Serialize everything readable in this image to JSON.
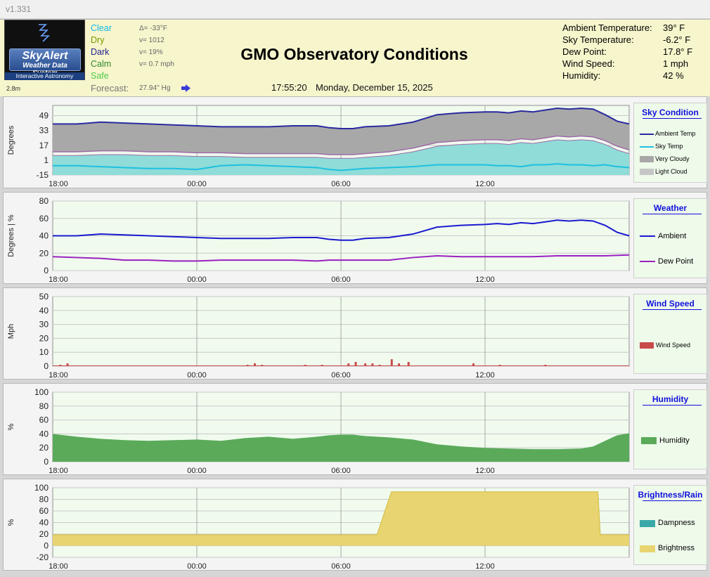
{
  "window": {
    "version": "v1.331"
  },
  "logo": {
    "title": "SkyAlert",
    "subtitle": "Weather Data System",
    "tagline": "Interactive Astronomy"
  },
  "header": {
    "stale": "2.8m",
    "title": "GMO Observatory Conditions",
    "time": "17:55:20",
    "date": "Monday, December 15, 2025",
    "status": [
      {
        "label": "Clear",
        "value": "Δ= -33°F",
        "color": "#12b8e8"
      },
      {
        "label": "Dry",
        "value": "v= 1012",
        "color": "#779900"
      },
      {
        "label": "Dark",
        "value": "v= 19%",
        "color": "#1f1f8f"
      },
      {
        "label": "Calm",
        "value": "v= 0.7 mph",
        "color": "#2e8b2e"
      },
      {
        "label": "Safe",
        "value": "",
        "color": "#4ccc4c"
      }
    ],
    "forecast": {
      "label": "Forecast:",
      "value": "27.94'' Hg"
    },
    "readings": [
      {
        "label": "Ambient Temperature:",
        "value": "39° F"
      },
      {
        "label": "Sky Temperature:",
        "value": "-6.2° F"
      },
      {
        "label": "Dew Point:",
        "value": "17.8° F"
      },
      {
        "label": "Wind Speed:",
        "value": "1 mph"
      },
      {
        "label": "Humidity:",
        "value": "42 %"
      }
    ]
  },
  "charts": [
    {
      "id": "sky",
      "legend_title": "Sky Condition",
      "legend": [
        "Ambient Temp",
        "Sky Temp",
        "Very Cloudy",
        "Light Cloud"
      ]
    },
    {
      "id": "weather",
      "legend_title": "Weather",
      "legend": [
        "Ambient",
        "Dew Point"
      ]
    },
    {
      "id": "wind",
      "legend_title": "Wind Speed",
      "legend": [
        "Wind Speed"
      ]
    },
    {
      "id": "humidity",
      "legend_title": "Humidity",
      "legend": [
        "Humidity"
      ]
    },
    {
      "id": "bright",
      "legend_title": "Brightness/Rain",
      "legend": [
        "Dampness",
        "Brightness"
      ]
    }
  ],
  "chart_data": [
    {
      "type": "area",
      "ylabel": "Degrees",
      "yticks": [
        49,
        33,
        17,
        1,
        -15
      ],
      "ylim": [
        -15,
        60
      ],
      "xticks": [
        "18:00",
        "00:00",
        "06:00",
        "12:00"
      ],
      "xlim": [
        0,
        24
      ],
      "series": [
        {
          "name": "Ambient Temp",
          "color": "#2a2aa0",
          "x": [
            0,
            1,
            2,
            3,
            4,
            5,
            6,
            7,
            8,
            9,
            10,
            11,
            11.5,
            12,
            12.5,
            13,
            14,
            15,
            16,
            17,
            18,
            18.5,
            19,
            19.5,
            20,
            20.5,
            21,
            21.5,
            22,
            22.5,
            23,
            23.5,
            24
          ],
          "y": [
            40,
            40,
            42,
            41,
            40,
            39,
            38,
            37,
            37,
            37,
            38,
            38,
            36,
            35,
            35,
            37,
            38,
            42,
            50,
            52,
            53,
            53,
            52,
            54,
            53,
            55,
            57,
            56,
            57,
            56,
            50,
            43,
            40
          ]
        },
        {
          "name": "Sky Temp",
          "color": "#1ec0e0",
          "x": [
            0,
            1,
            2,
            3,
            4,
            5,
            6,
            7,
            8,
            9,
            10,
            11,
            11.5,
            12,
            12.5,
            13,
            14,
            15,
            16,
            17,
            18,
            18.5,
            19,
            19.5,
            20,
            20.5,
            21,
            21.5,
            22,
            22.5,
            23,
            23.5,
            24
          ],
          "y": [
            -5,
            -5,
            -6,
            -7,
            -8,
            -8,
            -9,
            -5,
            -4,
            -5,
            -6,
            -7,
            -9,
            -10,
            -9,
            -8,
            -7,
            -6,
            -4,
            -4,
            -4,
            -5,
            -5,
            -6,
            -4,
            -4,
            -3,
            -4,
            -4,
            -5,
            -4,
            -6,
            -7
          ]
        },
        {
          "name": "Very Cloudy",
          "color": "#a8a8a8",
          "x": [
            0,
            1,
            2,
            3,
            4,
            5,
            6,
            7,
            8,
            9,
            10,
            11,
            11.5,
            12,
            12.5,
            13,
            14,
            15,
            16,
            17,
            18,
            18.5,
            19,
            19.5,
            20,
            20.5,
            21,
            21.5,
            22,
            22.5,
            23,
            23.5,
            24
          ],
          "y": [
            10,
            10,
            11,
            11,
            10,
            10,
            9,
            9,
            8,
            8,
            8,
            8,
            7,
            7,
            7,
            8,
            10,
            14,
            20,
            22,
            23,
            23,
            22,
            24,
            23,
            25,
            27,
            26,
            27,
            26,
            22,
            16,
            12
          ]
        },
        {
          "name": "Light Cloud",
          "color": "#c6c6c6",
          "x": [
            0,
            1,
            2,
            3,
            4,
            5,
            6,
            7,
            8,
            9,
            10,
            11,
            11.5,
            12,
            12.5,
            13,
            14,
            15,
            16,
            17,
            18,
            18.5,
            19,
            19.5,
            20,
            20.5,
            21,
            21.5,
            22,
            22.5,
            23,
            23.5,
            24
          ],
          "y": [
            6,
            6,
            7,
            7,
            6,
            6,
            5,
            5,
            4,
            4,
            4,
            4,
            3,
            3,
            3,
            4,
            6,
            10,
            16,
            18,
            19,
            19,
            18,
            20,
            19,
            21,
            23,
            22,
            23,
            22,
            18,
            12,
            8
          ]
        }
      ]
    },
    {
      "type": "line",
      "ylabel": "Degrees  |  %",
      "yticks": [
        80,
        60,
        40,
        20,
        0
      ],
      "ylim": [
        0,
        80
      ],
      "xticks": [
        "18:00",
        "00:00",
        "06:00",
        "12:00"
      ],
      "xlim": [
        0,
        24
      ],
      "series": [
        {
          "name": "Ambient",
          "color": "#1a1ad0",
          "x": [
            0,
            1,
            2,
            3,
            4,
            5,
            6,
            7,
            8,
            9,
            10,
            11,
            11.5,
            12,
            12.5,
            13,
            14,
            15,
            16,
            17,
            18,
            18.5,
            19,
            19.5,
            20,
            20.5,
            21,
            21.5,
            22,
            22.5,
            23,
            23.5,
            24
          ],
          "y": [
            40,
            40,
            42,
            41,
            40,
            39,
            38,
            37,
            37,
            37,
            38,
            38,
            36,
            35,
            35,
            37,
            38,
            42,
            50,
            52,
            53,
            54,
            53,
            55,
            54,
            56,
            58,
            57,
            58,
            57,
            52,
            44,
            40
          ]
        },
        {
          "name": "Dew Point",
          "color": "#9a20c0",
          "x": [
            0,
            1,
            2,
            3,
            4,
            5,
            6,
            7,
            8,
            9,
            10,
            11,
            11.5,
            12,
            12.5,
            13,
            14,
            15,
            16,
            17,
            18,
            19,
            20,
            21,
            22,
            23,
            24
          ],
          "y": [
            16,
            15,
            14,
            12,
            12,
            11,
            11,
            12,
            12,
            12,
            12,
            11,
            12,
            12,
            12,
            12,
            12,
            15,
            17,
            16,
            16,
            16,
            16,
            17,
            17,
            17,
            18
          ]
        }
      ]
    },
    {
      "type": "bar",
      "ylabel": "Mph",
      "yticks": [
        50,
        40,
        30,
        20,
        10,
        0
      ],
      "ylim": [
        0,
        50
      ],
      "xticks": [
        "18:00",
        "00:00",
        "06:00",
        "12:00"
      ],
      "xlim": [
        0,
        24
      ],
      "series": [
        {
          "name": "Wind Speed",
          "color": "#c84a4a",
          "x": [
            0.3,
            0.6,
            8.1,
            8.4,
            8.7,
            10.5,
            11.2,
            12.3,
            12.6,
            13.0,
            13.3,
            13.6,
            14.1,
            14.4,
            14.8,
            17.5,
            18.6,
            20.5
          ],
          "y": [
            1,
            2,
            1,
            2,
            1,
            1,
            1,
            2,
            3,
            2,
            2,
            1,
            5,
            2,
            3,
            2,
            1,
            1
          ]
        }
      ]
    },
    {
      "type": "area",
      "ylabel": "%",
      "yticks": [
        100,
        80,
        60,
        40,
        20,
        0
      ],
      "ylim": [
        0,
        100
      ],
      "xticks": [
        "18:00",
        "00:00",
        "06:00",
        "12:00"
      ],
      "xlim": [
        0,
        24
      ],
      "series": [
        {
          "name": "Humidity",
          "color": "#5aaa5a",
          "x": [
            0,
            1,
            2,
            3,
            4,
            5,
            6,
            7,
            8,
            9,
            10,
            11,
            11.5,
            12,
            12.5,
            13,
            14,
            15,
            16,
            17,
            18,
            19,
            20,
            21,
            22,
            22.5,
            23,
            23.5,
            24
          ],
          "y": [
            40,
            36,
            33,
            31,
            30,
            31,
            32,
            30,
            34,
            36,
            33,
            36,
            38,
            39,
            39,
            37,
            35,
            32,
            25,
            22,
            20,
            19,
            18,
            18,
            19,
            22,
            30,
            38,
            41
          ]
        }
      ]
    },
    {
      "type": "area",
      "ylabel": "%",
      "yticks": [
        100,
        80,
        60,
        40,
        20,
        0,
        -20
      ],
      "ylim": [
        -20,
        100
      ],
      "xticks": [
        "18:00",
        "00:00",
        "06:00",
        "12:00"
      ],
      "xlim": [
        0,
        24
      ],
      "series": [
        {
          "name": "Dampness",
          "color": "#3aa8a8",
          "x": [
            0,
            24
          ],
          "y": [
            0,
            0
          ]
        },
        {
          "name": "Brightness",
          "color": "#e8d470",
          "x": [
            0,
            13.5,
            14.1,
            22.7,
            22.8,
            24
          ],
          "y": [
            19,
            19,
            93,
            93,
            19,
            19
          ]
        }
      ]
    }
  ]
}
